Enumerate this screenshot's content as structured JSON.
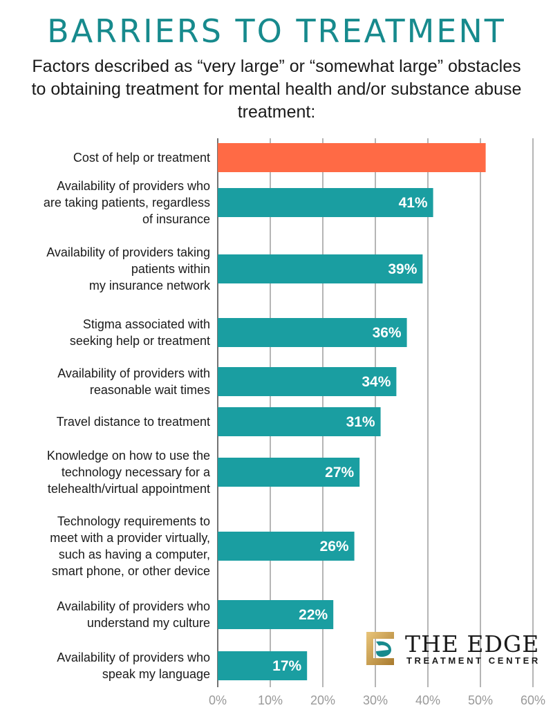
{
  "title": "BARRIERS TO TREATMENT",
  "subtitle": "Factors described as “very large” or “somewhat large” obstacles to obtaining treatment for mental health and/or substance abuse treatment:",
  "logo": {
    "name": "THE EDGE",
    "tagline": "TREATMENT CENTER",
    "icon": "edge-e-icon"
  },
  "colors": {
    "accent": "#ff6a45",
    "bar": "#1a9ea1",
    "title": "#178a8d",
    "grid": "#555555"
  },
  "chart_data": {
    "type": "bar",
    "orientation": "horizontal",
    "title": "BARRIERS TO TREATMENT",
    "xlim": [
      0,
      60
    ],
    "xticks": [
      "0%",
      "10%",
      "20%",
      "30%",
      "40%",
      "50%",
      "60%"
    ],
    "grid": true,
    "categories": [
      [
        "Cost of help or treatment"
      ],
      [
        "Availability of providers who",
        "are taking patients, regardless",
        "of insurance"
      ],
      [
        "Availability of providers taking",
        "patients within",
        "my insurance network"
      ],
      [
        "Stigma associated with",
        "seeking help or treatment"
      ],
      [
        "Availability of providers with",
        "reasonable wait times"
      ],
      [
        "Travel distance to treatment"
      ],
      [
        "Knowledge on how to use the",
        "technology necessary for a",
        "telehealth/virtual appointment"
      ],
      [
        "Technology requirements to",
        "meet with a provider virtually,",
        "such as having a computer,",
        "smart phone, or other device"
      ],
      [
        "Availability of providers who",
        "understand my culture"
      ],
      [
        "Availability of providers who",
        "speak my language"
      ]
    ],
    "values": [
      51,
      41,
      39,
      36,
      34,
      31,
      27,
      26,
      22,
      17
    ],
    "labels": [
      "",
      "41%",
      "39%",
      "36%",
      "34%",
      "31%",
      "27%",
      "26%",
      "22%",
      "17%"
    ],
    "highlight_index": 0
  }
}
